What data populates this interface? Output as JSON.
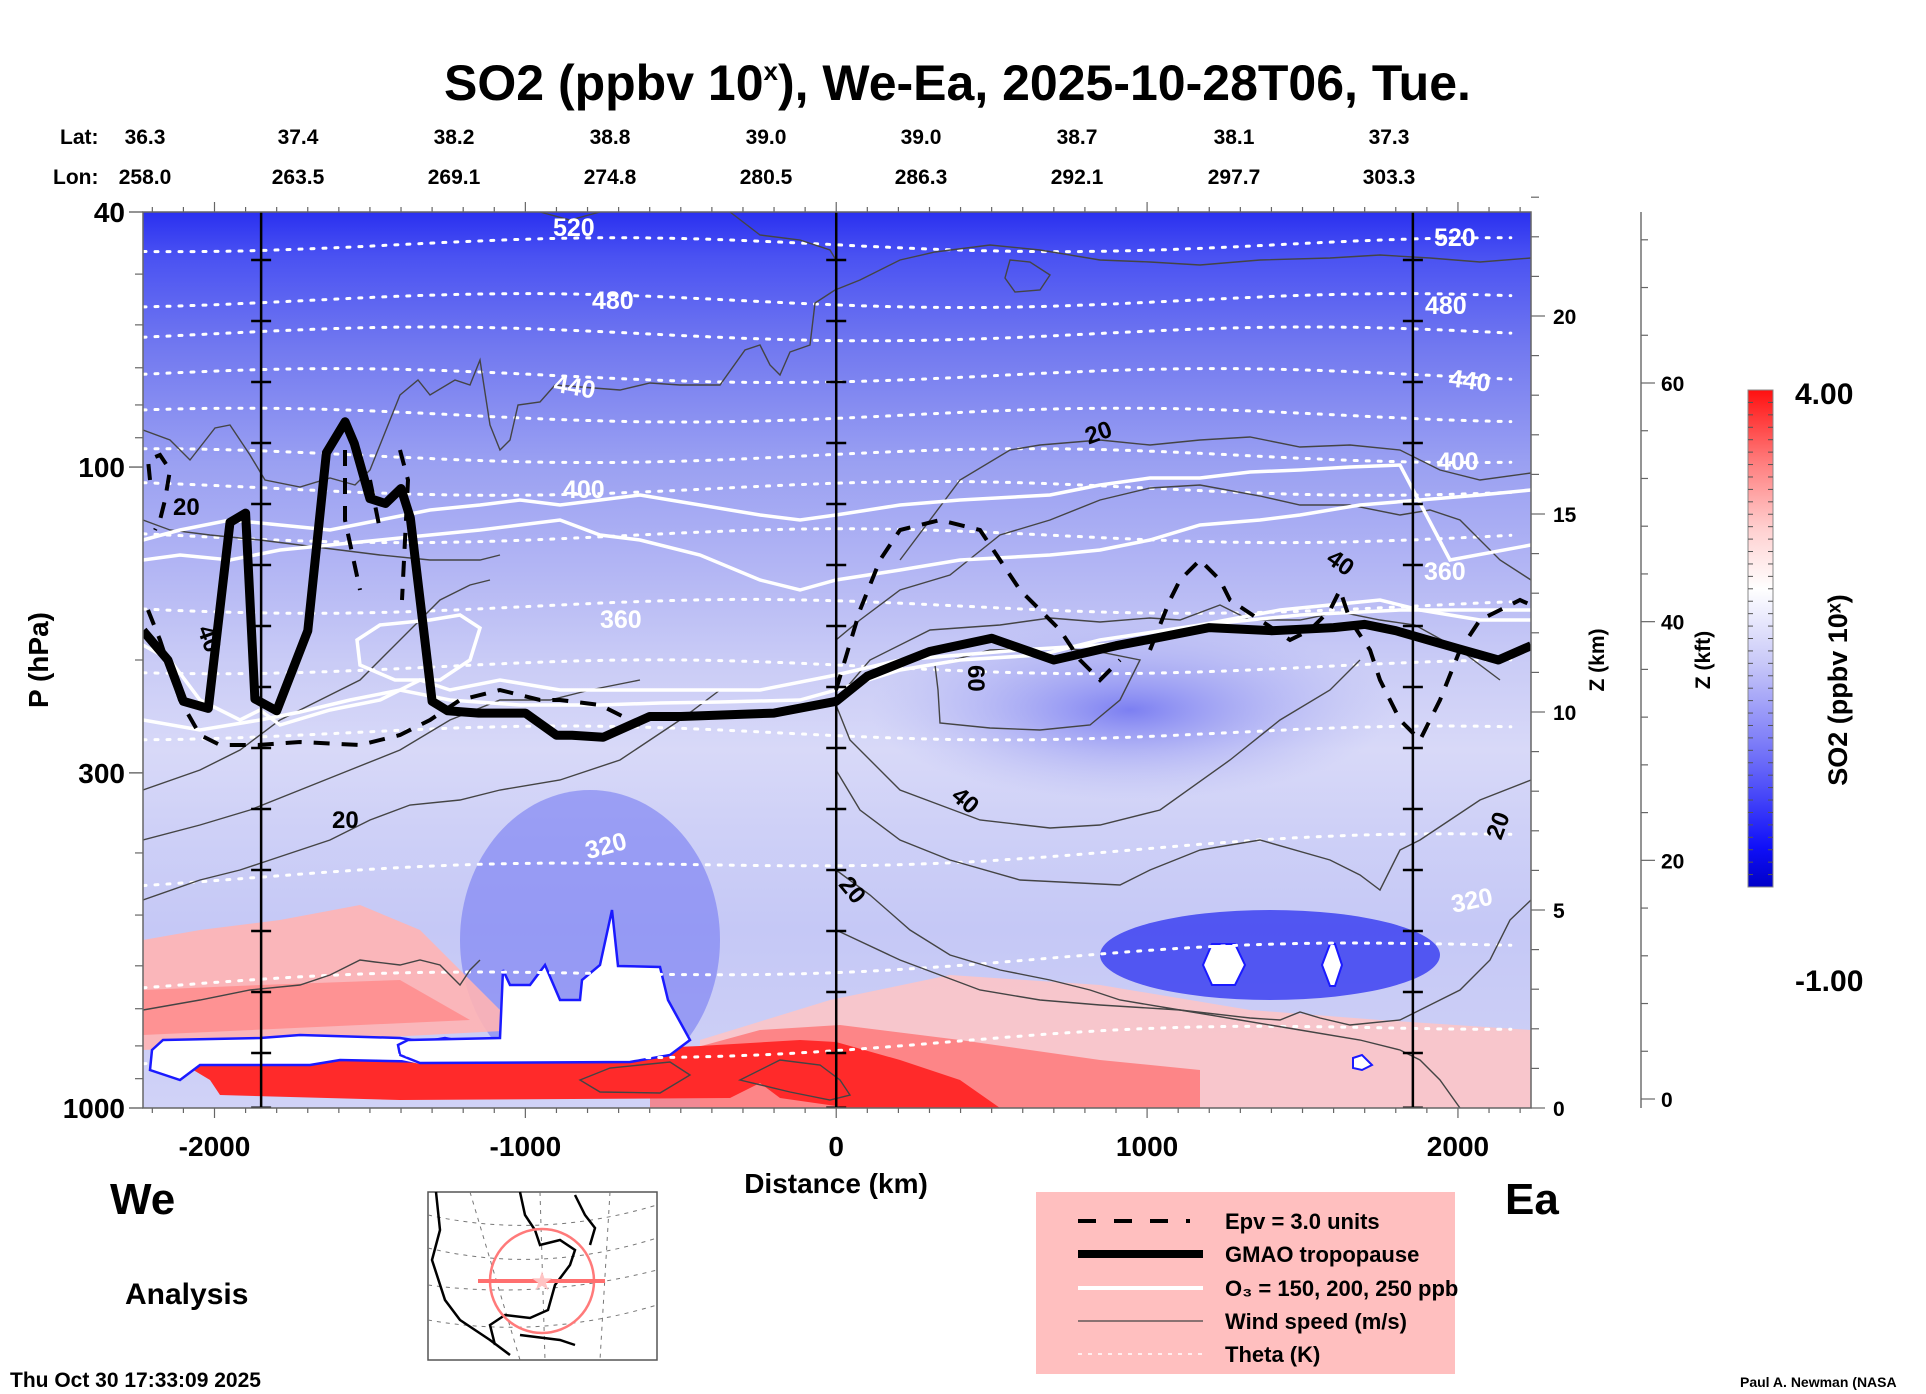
{
  "title": {
    "main": "SO2 (ppbv 10",
    "sup": "x",
    "rest": "), We-Ea, 2025-10-28T06, Tue."
  },
  "coords": {
    "lat_label": "Lat:",
    "lon_label": "Lon:",
    "lat": [
      "36.3",
      "37.4",
      "38.2",
      "38.8",
      "39.0",
      "39.0",
      "38.7",
      "38.1",
      "37.3"
    ],
    "lon": [
      "258.0",
      "263.5",
      "269.1",
      "274.8",
      "280.5",
      "286.3",
      "292.1",
      "297.7",
      "303.3"
    ]
  },
  "labels": {
    "west": "We",
    "east": "Ea",
    "analysis": "Analysis",
    "timestamp": "Thu Oct 30 17:33:09 2025",
    "credit": "Paul A. Newman (NASA"
  },
  "legend": {
    "items": [
      {
        "label": "Epv = 3.0 units",
        "style": "dashed"
      },
      {
        "label": "GMAO tropopause",
        "style": "thick"
      },
      {
        "label": "O₃ = 150, 200, 250 ppb",
        "style": "white"
      },
      {
        "label": "Wind speed (m/s)",
        "style": "thin"
      },
      {
        "label": "Theta (K)",
        "style": "dotted"
      }
    ],
    "background": "#ffbfbf"
  },
  "colorbar": {
    "label": "SO2 (ppbv 10ˣ)",
    "min_label": "-1.00",
    "max_label": "4.00",
    "min": -1.0,
    "max": 4.0,
    "low_color": "#0000cc",
    "mid_color": "#ffffff",
    "high_color": "#ff0000"
  },
  "chart_data": {
    "type": "heatmap",
    "title": "SO2 (ppbv 10^x), We-Ea, 2025-10-28T06, Tue.",
    "xlabel": "Distance (km)",
    "ylabel": "P (hPa)",
    "y2label": "Z (km)",
    "y3label": "Z (kft)",
    "xlim": [
      -2230,
      2235
    ],
    "ylim": [
      1000,
      40
    ],
    "yscale": "log",
    "x_ticks": [
      -2000,
      -1000,
      0,
      1000,
      2000
    ],
    "x_tick_labels": [
      "-2000",
      "-1000",
      "0",
      "1000",
      "2000"
    ],
    "y_ticks": [
      40,
      100,
      300,
      1000
    ],
    "y_tick_labels": [
      "40",
      "100",
      "300",
      "1000"
    ],
    "z_km_ticks": [
      0,
      5,
      10,
      15,
      20
    ],
    "z_kft_ticks": [
      0,
      20,
      40,
      60
    ],
    "vertical_markers_km": [
      -1850,
      0,
      1855
    ],
    "theta_levels_K": [
      320,
      360,
      400,
      440,
      480,
      520
    ],
    "wind_contour_labels_ms": [
      20,
      20,
      40,
      20,
      60,
      40,
      40,
      20,
      20
    ],
    "tropopause_hPa": {
      "x": [
        -2230,
        -2150,
        -2100,
        -2020,
        -1950,
        -1900,
        -1870,
        -1800,
        -1700,
        -1640,
        -1580,
        -1550,
        -1500,
        -1450,
        -1400,
        -1370,
        -1330,
        -1300,
        -1250,
        -1150,
        -1000,
        -900,
        -850,
        -750,
        -600,
        -500,
        -400,
        -200,
        0,
        100,
        300,
        500,
        700,
        900,
        1000,
        1200,
        1400,
        1600,
        1700,
        1800,
        2000,
        2130,
        2235
      ],
      "p": [
        180,
        200,
        232,
        238,
        122,
        118,
        230,
        240,
        180,
        95,
        85,
        92,
        112,
        114,
        108,
        120,
        175,
        232,
        240,
        242,
        242,
        262,
        262,
        264,
        245,
        245,
        244,
        242,
        232,
        212,
        194,
        185,
        200,
        190,
        186,
        178,
        180,
        178,
        176,
        180,
        192,
        200,
        190
      ]
    },
    "features": [
      {
        "name": "surface SO2 max (red)",
        "x_range": [
          -2230,
          200
        ],
        "p_range": [
          700,
          1000
        ],
        "value_approx": 4.0
      },
      {
        "name": "upper stratosphere low (blue)",
        "p_range": [
          40,
          60
        ],
        "value_approx": -0.5
      }
    ]
  }
}
